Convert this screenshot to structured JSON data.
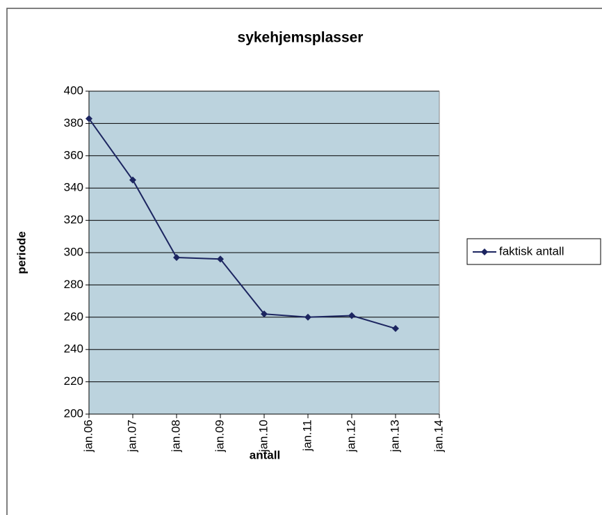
{
  "chart_data": {
    "type": "line",
    "title": "sykehjemsplasser",
    "x_label": "antall",
    "y_label": "periode",
    "categories": [
      "jan.06",
      "jan.07",
      "jan.08",
      "jan.09",
      "jan.10",
      "jan.11",
      "jan.12",
      "jan.13",
      "jan.14"
    ],
    "series": [
      {
        "name": "faktisk antall",
        "color": "#1c2560",
        "values": [
          383,
          345,
          297,
          296,
          262,
          260,
          261,
          253,
          null
        ]
      }
    ],
    "ylim": [
      200,
      400
    ],
    "yticks": [
      200,
      220,
      240,
      260,
      280,
      300,
      320,
      340,
      360,
      380,
      400
    ],
    "grid": true,
    "legend": "right",
    "plot_background": "#bcd3de"
  }
}
